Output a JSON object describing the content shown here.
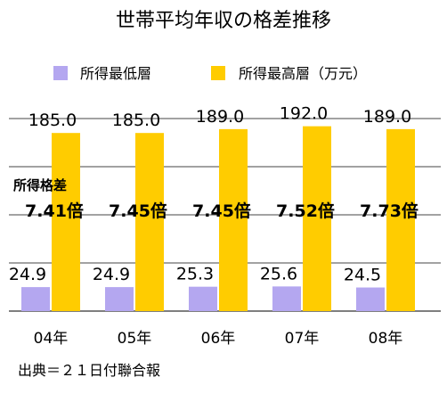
{
  "chart_data": {
    "type": "bar",
    "title": "世帯平均年収の格差推移",
    "categories": [
      "04年",
      "05年",
      "06年",
      "07年",
      "08年"
    ],
    "series": [
      {
        "name": "所得最低層",
        "values": [
          24.9,
          24.9,
          25.3,
          25.6,
          24.5
        ],
        "color": "#b4a7f0"
      },
      {
        "name": "所得最高層（万元）",
        "values": [
          185.0,
          185.0,
          189.0,
          192.0,
          189.0
        ],
        "color": "#ffcc00"
      }
    ],
    "value_labels": {
      "low": [
        "24.9",
        "24.9",
        "25.3",
        "25.6",
        "24.5"
      ],
      "high": [
        "185.0",
        "185.0",
        "189.0",
        "192.0",
        "189.0"
      ]
    },
    "gap_label": "所得格差",
    "gap_ratios": [
      "7.41倍",
      "7.45倍",
      "7.45倍",
      "7.52倍",
      "7.73倍"
    ],
    "ylim": [
      0,
      200
    ],
    "grid": true,
    "legend_position": "top",
    "source": "出典＝２１日付聯合報"
  }
}
